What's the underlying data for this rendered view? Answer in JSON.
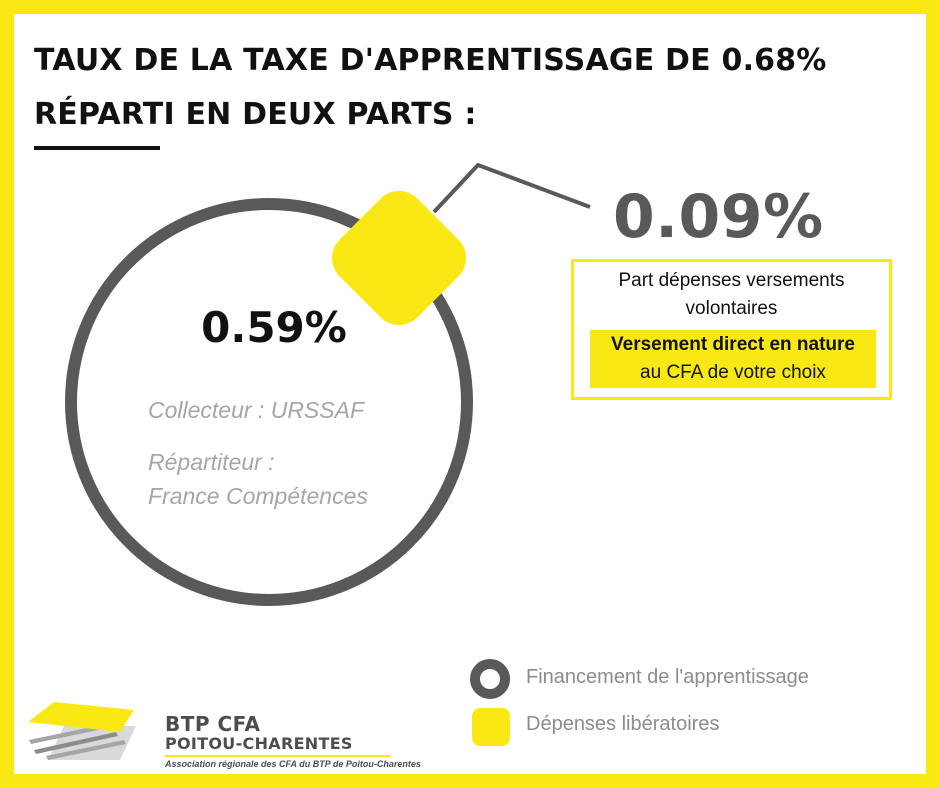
{
  "title": {
    "line1": "TAUX DE LA TAXE D'APPRENTISSAGE DE 0.68%",
    "line2": "RÉPARTI EN DEUX PARTS :"
  },
  "main_part": {
    "value": "0.59%",
    "collector": "Collecteur : URSSAF",
    "distributor_label": "Répartiteur :",
    "distributor_name": "France Compétences"
  },
  "secondary_part": {
    "value": "0.09%",
    "desc_line1": "Part dépenses versements",
    "desc_line2": "volontaires",
    "highlight_bold": "Versement direct en nature",
    "highlight_line": "au CFA de votre choix"
  },
  "legend": [
    {
      "label": "Financement de l'apprentissage",
      "icon": "ring-icon",
      "color": "#595959"
    },
    {
      "label": "Dépenses libératoires",
      "icon": "yellow-square-icon",
      "color": "#f9e814"
    }
  ],
  "logo": {
    "name": "BTP CFA",
    "region": "POITOU-CHARENTES",
    "tagline": "Association régionale des CFA du BTP de Poitou-Charentes"
  },
  "colors": {
    "accent_yellow": "#f9e814",
    "ring_grey": "#595959",
    "text_dark": "#111111",
    "text_grey": "#a6a6a6"
  }
}
